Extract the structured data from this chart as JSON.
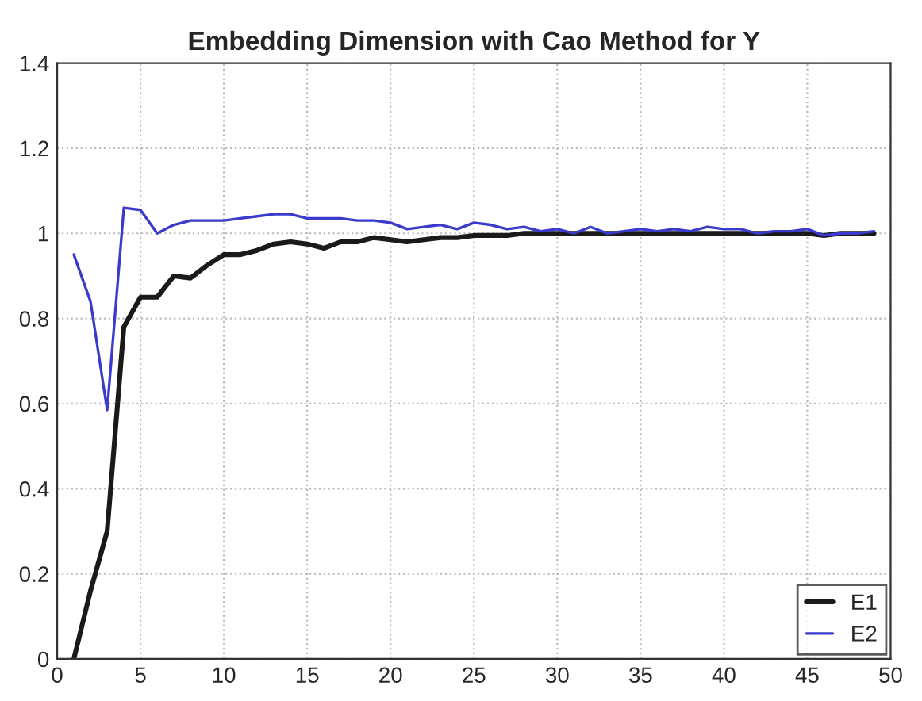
{
  "chart_data": {
    "type": "line",
    "title": "Embedding Dimension with Cao Method for Y",
    "x": [
      1,
      2,
      3,
      4,
      5,
      6,
      7,
      8,
      9,
      10,
      11,
      12,
      13,
      14,
      15,
      16,
      17,
      18,
      19,
      20,
      21,
      22,
      23,
      24,
      25,
      26,
      27,
      28,
      29,
      30,
      31,
      32,
      33,
      34,
      35,
      36,
      37,
      38,
      39,
      40,
      41,
      42,
      43,
      44,
      45,
      46,
      47,
      48,
      49
    ],
    "series": [
      {
        "name": "E1",
        "color": "#1a1a1a",
        "values": [
          0,
          0.16,
          0.3,
          0.78,
          0.85,
          0.85,
          0.9,
          0.895,
          0.925,
          0.95,
          0.95,
          0.96,
          0.975,
          0.98,
          0.975,
          0.965,
          0.98,
          0.98,
          0.99,
          0.985,
          0.98,
          0.985,
          0.99,
          0.99,
          0.995,
          0.995,
          0.995,
          1.0,
          1.0,
          1.0,
          1.0,
          1.0,
          1.0,
          1.0,
          1.0,
          1.0,
          1.0,
          1.0,
          1.0,
          1.0,
          1.0,
          1.0,
          1.0,
          1.0,
          1.0,
          0.995,
          1.0,
          1.0,
          1.0
        ]
      },
      {
        "name": "E2",
        "color": "#3a3acc",
        "values": [
          0.95,
          0.84,
          0.585,
          1.06,
          1.055,
          1.0,
          1.02,
          1.03,
          1.03,
          1.03,
          1.035,
          1.04,
          1.045,
          1.045,
          1.035,
          1.035,
          1.035,
          1.03,
          1.03,
          1.025,
          1.01,
          1.015,
          1.02,
          1.01,
          1.025,
          1.02,
          1.01,
          1.015,
          1.005,
          1.01,
          1.0,
          1.015,
          1.0,
          1.005,
          1.01,
          1.005,
          1.01,
          1.005,
          1.015,
          1.01,
          1.01,
          1.0,
          1.005,
          1.005,
          1.01,
          0.995,
          1.0,
          1.0,
          1.005
        ]
      }
    ],
    "xlim": [
      0,
      50
    ],
    "xticks": [
      0,
      5,
      10,
      15,
      20,
      25,
      30,
      35,
      40,
      45,
      50
    ],
    "ylim": [
      0,
      1.4
    ],
    "yticks": [
      {
        "value": 0,
        "label": "0"
      },
      {
        "value": 0.2,
        "label": "0.2"
      },
      {
        "value": 0.4,
        "label": "0.4"
      },
      {
        "value": 0.6,
        "label": "0.6"
      },
      {
        "value": 0.8,
        "label": "0.8"
      },
      {
        "value": 1,
        "label": "1"
      },
      {
        "value": 1.2,
        "label": "1.2"
      },
      {
        "value": 1.4,
        "label": "1.4"
      }
    ],
    "grid": true,
    "legend": "bottom right",
    "marker": "none",
    "line_style": "solid"
  }
}
